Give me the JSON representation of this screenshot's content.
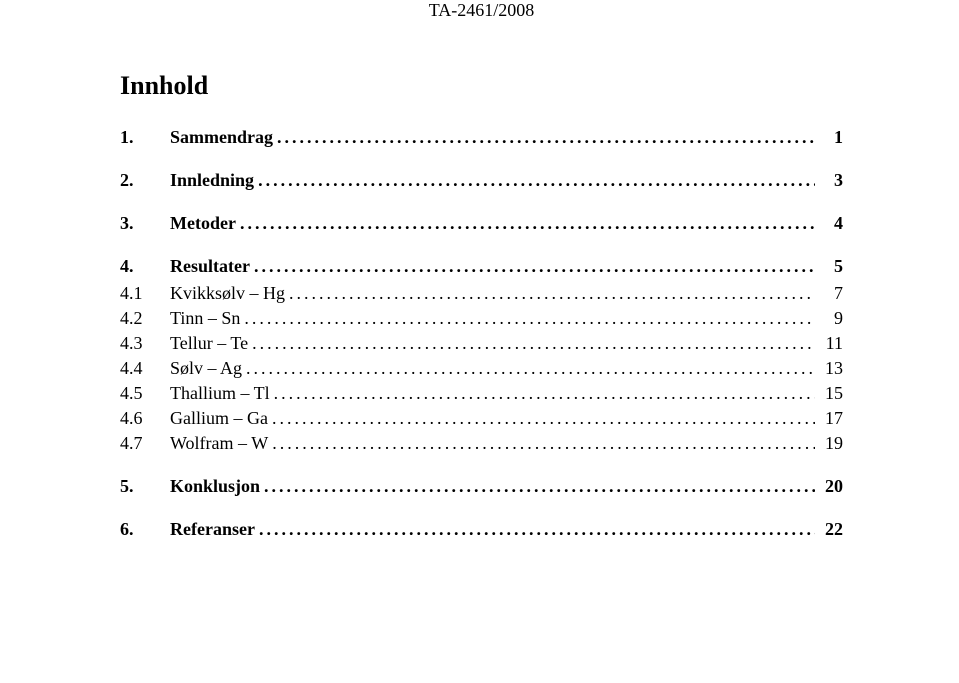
{
  "header": "TA-2461/2008",
  "title": "Innhold",
  "toc": [
    {
      "num": "1.",
      "text": "Sammendrag",
      "page": "1",
      "bold": true
    },
    {
      "num": "2.",
      "text": "Innledning",
      "page": "3",
      "bold": true
    },
    {
      "num": "3.",
      "text": "Metoder",
      "page": "4",
      "bold": true
    },
    {
      "num": "4.",
      "text": "Resultater",
      "page": "5",
      "bold": true
    },
    {
      "num": "4.1",
      "text": "Kvikksølv – Hg",
      "page": "7",
      "bold": false
    },
    {
      "num": "4.2",
      "text": "Tinn – Sn",
      "page": "9",
      "bold": false
    },
    {
      "num": "4.3",
      "text": "Tellur – Te",
      "page": "11",
      "bold": false
    },
    {
      "num": "4.4",
      "text": "Sølv – Ag",
      "page": "13",
      "bold": false
    },
    {
      "num": "4.5",
      "text": "Thallium – Tl",
      "page": "15",
      "bold": false
    },
    {
      "num": "4.6",
      "text": "Gallium – Ga",
      "page": "17",
      "bold": false
    },
    {
      "num": "4.7",
      "text": "Wolfram – W",
      "page": "19",
      "bold": false
    },
    {
      "num": "5.",
      "text": "Konklusjon",
      "page": "20",
      "bold": true
    },
    {
      "num": "6.",
      "text": "Referanser",
      "page": "22",
      "bold": true
    }
  ]
}
